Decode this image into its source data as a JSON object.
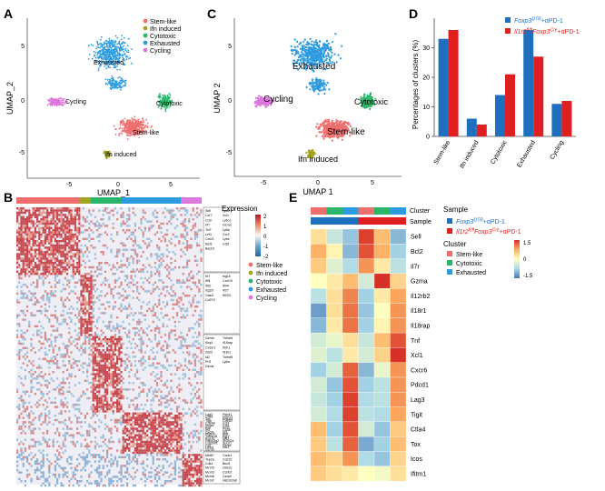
{
  "figure": {
    "panels": [
      "A",
      "B",
      "C",
      "D",
      "E"
    ],
    "cluster_colors": {
      "Stem-like": "#ee6e6e",
      "Ifn induced": "#a3a324",
      "Cytotoxic": "#2bb56b",
      "Exhausted": "#2c9be0",
      "Cycling": "#dd77dd"
    }
  },
  "panel_a": {
    "xlabel": "UMAP_1",
    "ylabel": "UMAP_2",
    "xticks": [
      "-5",
      "0",
      "5"
    ],
    "yticks": [
      "5",
      "0",
      "-5"
    ],
    "legend": [
      "Stem-like",
      "Ifn induced",
      "Cytotoxic",
      "Exhausted",
      "Cycling"
    ],
    "labels": {
      "exhausted": "Exhausted",
      "cycling": "Cycling",
      "cytotoxic": "Cytotoxic",
      "stem": "Stem-like",
      "ifn": "Ifn induced"
    }
  },
  "panel_c": {
    "xlabel": "UMAP 1",
    "ylabel": "UMAP 2",
    "xticks": [
      "-5",
      "0",
      "5"
    ],
    "yticks": [
      "5",
      "0",
      "-5"
    ],
    "labels": {
      "exhausted": "Exhausted",
      "cycling": "Cycling",
      "cytotoxic": "Cytotoxic",
      "stem": "Stem-like",
      "ifn": "Ifn induced"
    }
  },
  "panel_b": {
    "legend_title": "Expression",
    "scale_ticks": [
      "2",
      "1",
      "0",
      "-1",
      "-2"
    ],
    "clusters": [
      "Stem-like",
      "Ifn induced",
      "Cytotoxic",
      "Exhausted",
      "Cycling"
    ],
    "gene_groups": [
      [
        [
          "Sell",
          "Ly6e"
        ],
        [
          "Ccr7",
          "Xcl1"
        ],
        [
          "Cd3",
          "Ly6c2"
        ],
        [
          "Il7r",
          "Gzma"
        ],
        [
          "Tcf7",
          "Ly6a"
        ],
        [
          "Lef1",
          "Ccr3"
        ],
        [
          "Cxcr3",
          "Ly6e"
        ],
        [
          "Ikzf1",
          "Ccl5"
        ],
        [
          "Bach2",
          ""
        ]
      ],
      [
        [
          "Irf7",
          "Isg15"
        ],
        [
          "Ifit1",
          "Cxcl10"
        ],
        [
          "Ifit3",
          "Ifi44"
        ],
        [
          "Isg20",
          "Ifi27"
        ],
        [
          "Oasl1",
          "Ifi203"
        ],
        [
          "Cd274",
          ""
        ]
      ],
      [
        [
          "Gzmb",
          "Tnfrsf4"
        ],
        [
          "Klrg1",
          "Il18rap"
        ],
        [
          "Cx3cr1",
          "Klrk1"
        ],
        [
          "Zeb2",
          "Il18r1"
        ],
        [
          "Id2",
          "Tnfrsf9"
        ],
        [
          "Prf1",
          "Ly6a"
        ],
        [
          "Gzmk",
          ""
        ]
      ],
      [
        [
          "Lag3",
          "Pdcd1"
        ],
        [
          "Ctla4",
          "Havcr2"
        ],
        [
          "Tox",
          "Entpd1"
        ],
        [
          "Tigit",
          "Cd160"
        ],
        [
          "Cd244",
          "Ccl3"
        ],
        [
          "Nr4a2",
          "Ccl4"
        ],
        [
          "Batf",
          "Ikzf2"
        ],
        [
          "Irf4",
          "Cd38"
        ],
        [
          "Cxcr6",
          "Il21"
        ],
        [
          "Ptger4",
          "Maf"
        ],
        [
          "Tnfrsf18",
          "Egr2"
        ],
        [
          "Rgs16",
          "Nfil3"
        ],
        [
          "Pdcd1lg2",
          "Sh2d2a"
        ],
        [
          "Cd200r1",
          "Socs1"
        ],
        [
          "Cd7",
          "Gzmc"
        ],
        [
          "Lilrb4",
          "Ncr1"
        ],
        [
          "Gzmb",
          ""
        ]
      ],
      [
        [
          "Mki67",
          "Ccnb1"
        ],
        [
          "Top2a",
          "Cdc20"
        ],
        [
          "Cdk1",
          "Birc5"
        ],
        [
          "Mcm5",
          "Ube2c"
        ],
        [
          "Mcm3",
          "Ccnb2"
        ],
        [
          "Mcm6",
          "Cenpf"
        ],
        [
          "Mcm2",
          "Hist1h2ab"
        ]
      ]
    ]
  },
  "chart_data": [
    {
      "type": "bar",
      "panel": "D",
      "title": "",
      "xlabel": "",
      "ylabel": "Percentages of clusters (%)",
      "ylim": [
        0,
        40
      ],
      "yticks": [
        "0",
        "10",
        "20",
        "30"
      ],
      "categories": [
        "Stem-like",
        "Ifn induced",
        "Cytotoxic",
        "Exhausted",
        "Cycling"
      ],
      "series": [
        {
          "name": "Foxp3DTR+αPD-1",
          "name_main": "Foxp3",
          "name_sup": "DTR",
          "name_tail": "+αPD-1",
          "color": "#1f6fbf",
          "values": [
            33,
            6,
            14,
            36,
            11
          ]
        },
        {
          "name": "Il1r2fl/flFoxp3Cre+αPD-1",
          "name_main": "Il1r2",
          "name_sup": "fl/fl",
          "name_mid": "Foxp3",
          "name_sup2": "Cre",
          "name_tail": "+αPD-1",
          "color": "#e02020",
          "values": [
            36,
            4,
            21,
            27,
            12
          ]
        }
      ]
    },
    {
      "type": "heatmap",
      "panel": "E",
      "row_labels": [
        "Sell",
        "Bcl2",
        "Il7r",
        "Gzma",
        "Il12rb2",
        "Il18r1",
        "Il18rap",
        "Tnf",
        "Xcl1",
        "Cxcr6",
        "Pdcd1",
        "Lag3",
        "Tigit",
        "Ctla4",
        "Tox",
        "Icos",
        "Ifitm1"
      ],
      "column_clusters": [
        "Stem-like",
        "Cytotoxic",
        "Exhausted",
        "Stem-like",
        "Cytotoxic",
        "Exhausted"
      ],
      "column_samples": [
        "Foxp3DTR+αPD-1",
        "Foxp3DTR+αPD-1",
        "Foxp3DTR+αPD-1",
        "Il1r2fl/flFoxp3Cre+αPD-1",
        "Il1r2fl/flFoxp3Cre+αPD-1",
        "Il1r2fl/flFoxp3Cre+αPD-1"
      ],
      "values": [
        [
          0.3,
          -0.5,
          -0.9,
          1.4,
          0.6,
          -1.0
        ],
        [
          0.7,
          0.1,
          -1.0,
          1.3,
          0.7,
          -0.8
        ],
        [
          0.5,
          -0.3,
          -0.7,
          0.9,
          0.2,
          -0.6
        ],
        [
          0.0,
          0.2,
          0.6,
          -0.4,
          1.5,
          0.4
        ],
        [
          -0.6,
          0.3,
          1.0,
          -0.8,
          0.2,
          0.8
        ],
        [
          -1.2,
          0.3,
          1.1,
          -0.9,
          0.0,
          0.9
        ],
        [
          -1.0,
          0.2,
          1.1,
          -0.8,
          0.1,
          0.9
        ],
        [
          -0.4,
          -0.2,
          0.3,
          -0.5,
          0.6,
          1.3
        ],
        [
          -0.3,
          -0.6,
          0.2,
          -0.4,
          0.4,
          1.5
        ],
        [
          -0.8,
          -0.4,
          1.2,
          -1.0,
          -0.2,
          0.9
        ],
        [
          -0.4,
          -0.9,
          1.3,
          -0.8,
          -0.6,
          0.9
        ],
        [
          -0.5,
          -0.8,
          1.4,
          -0.7,
          -0.6,
          0.9
        ],
        [
          -0.4,
          -0.7,
          1.4,
          -0.6,
          -0.7,
          0.8
        ],
        [
          0.6,
          -0.8,
          1.3,
          -0.4,
          -0.9,
          0.5
        ],
        [
          0.5,
          -0.6,
          1.2,
          -1.1,
          -0.8,
          0.6
        ],
        [
          0.6,
          0.4,
          0.9,
          -0.7,
          -0.9,
          0.4
        ],
        [
          0.5,
          0.3,
          0.2,
          0.0,
          -0.1,
          0.3
        ]
      ],
      "legend": {
        "cluster_title": "Cluster",
        "sample_title": "Sample",
        "annotation_sample": "Sample",
        "annotation_cluster": "Cluster",
        "clusters": [
          "Stem-like",
          "Cytotoxic",
          "Exhausted"
        ],
        "scale_ticks": [
          "1.5",
          "0",
          "-1.5"
        ]
      }
    }
  ]
}
